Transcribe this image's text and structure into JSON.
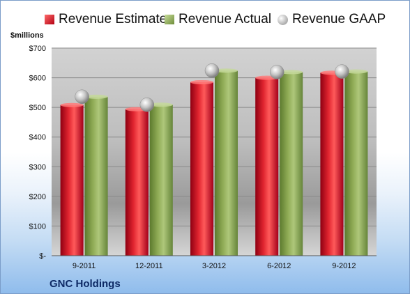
{
  "chart_data": {
    "type": "bar",
    "title": "",
    "unit_label": "$millions",
    "company": "GNC Holdings",
    "categories": [
      "9-2011",
      "12-2011",
      "3-2012",
      "6-2012",
      "9-2012"
    ],
    "series": [
      {
        "name": "Revenue Estimate",
        "kind": "bar",
        "color": "#c8102e",
        "values": [
          508,
          494,
          585,
          600,
          617
        ]
      },
      {
        "name": "Revenue Actual",
        "kind": "bar",
        "color": "#8faa55",
        "values": [
          536,
          509,
          624,
          619,
          621
        ]
      },
      {
        "name": "Revenue GAAP",
        "kind": "marker",
        "color": "#b0b0b0",
        "values": [
          536,
          509,
          624,
          619,
          621
        ]
      }
    ],
    "ylim": [
      0,
      700
    ],
    "yticks": [
      0,
      100,
      200,
      300,
      400,
      500,
      600,
      700
    ],
    "ytick_labels": [
      "$-",
      "$100",
      "$200",
      "$300",
      "$400",
      "$500",
      "$600",
      "$700"
    ],
    "grid": true,
    "legend_position": "top"
  }
}
